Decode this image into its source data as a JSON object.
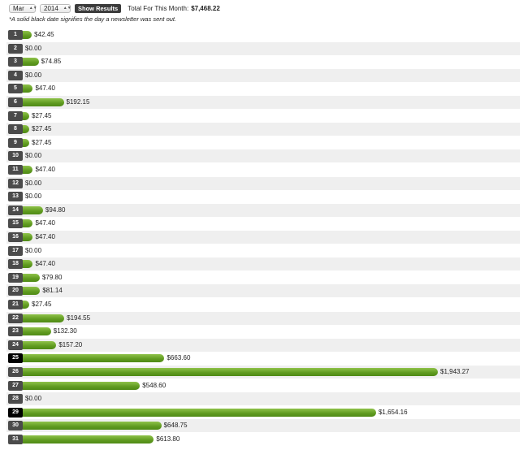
{
  "controls": {
    "month": "Mar",
    "year": "2014",
    "button_label": "Show Results",
    "total_label": "Total For This Month:",
    "total_value": "$7,468.22"
  },
  "note": "*A solid black date signifies the day a newsletter was sent out.",
  "colors": {
    "bar": "#6aa524",
    "day_badge": "#4b4b4b",
    "newsletter_day": "#000000",
    "row_stripe": "#efefef"
  },
  "chart_data": {
    "type": "bar",
    "orientation": "horizontal",
    "title": "",
    "xlabel": "",
    "ylabel": "",
    "xlim": [
      0,
      1943.27
    ],
    "categories": [
      "1",
      "2",
      "3",
      "4",
      "5",
      "6",
      "7",
      "8",
      "9",
      "10",
      "11",
      "12",
      "13",
      "14",
      "15",
      "16",
      "17",
      "18",
      "19",
      "20",
      "21",
      "22",
      "23",
      "24",
      "25",
      "26",
      "27",
      "28",
      "29",
      "30",
      "31"
    ],
    "values": [
      42.45,
      0,
      74.85,
      0,
      47.4,
      192.15,
      27.45,
      27.45,
      27.45,
      0,
      47.4,
      0,
      0,
      94.8,
      47.4,
      47.4,
      0,
      47.4,
      79.8,
      81.14,
      27.45,
      194.55,
      132.3,
      157.2,
      663.6,
      1943.27,
      548.6,
      0,
      1654.16,
      648.75,
      613.8
    ],
    "labels": [
      "$42.45",
      "$0.00",
      "$74.85",
      "$0.00",
      "$47.40",
      "$192.15",
      "$27.45",
      "$27.45",
      "$27.45",
      "$0.00",
      "$47.40",
      "$0.00",
      "$0.00",
      "$94.80",
      "$47.40",
      "$47.40",
      "$0.00",
      "$47.40",
      "$79.80",
      "$81.14",
      "$27.45",
      "$194.55",
      "$132.30",
      "$157.20",
      "$663.60",
      "$1,943.27",
      "$548.60",
      "$0.00",
      "$1,654.16",
      "$648.75",
      "$613.80"
    ],
    "newsletter_days": [
      "25",
      "29"
    ]
  }
}
